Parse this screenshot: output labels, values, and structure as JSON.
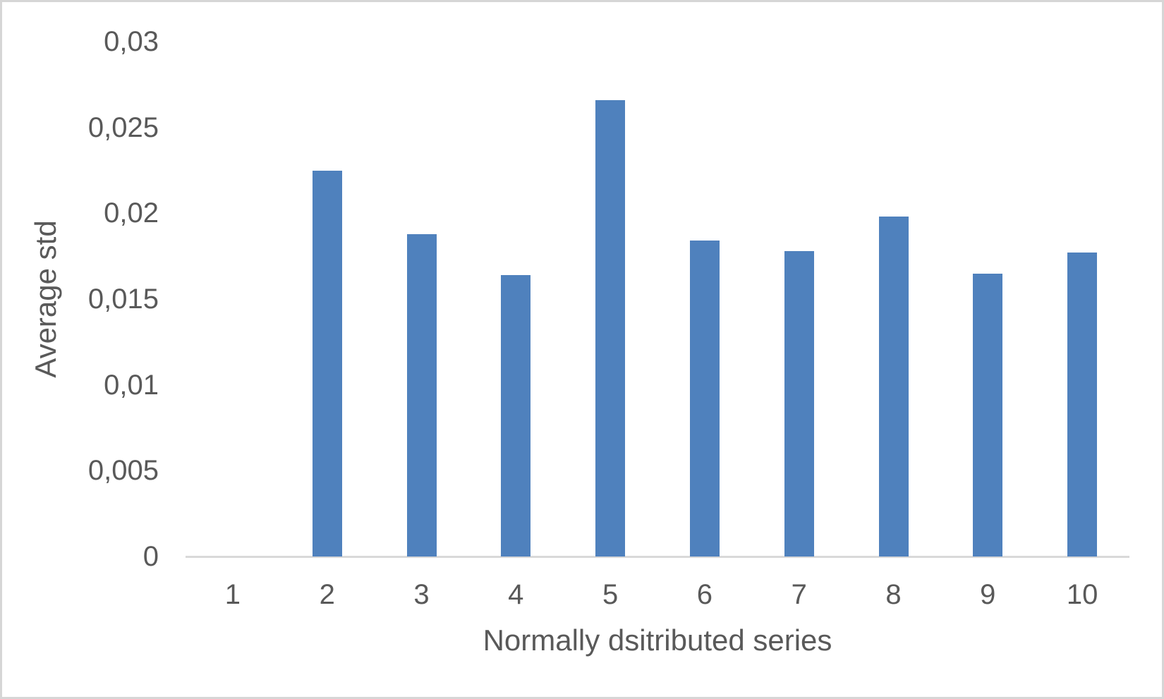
{
  "chart_data": {
    "type": "bar",
    "title": "",
    "xlabel": "Normally dsitributed series",
    "ylabel": "Average std",
    "categories": [
      "1",
      "2",
      "3",
      "4",
      "5",
      "6",
      "7",
      "8",
      "9",
      "10"
    ],
    "values": [
      0,
      0.0225,
      0.0188,
      0.0164,
      0.0266,
      0.0184,
      0.0178,
      0.0198,
      0.0165,
      0.0177
    ],
    "ylim": [
      0,
      0.03
    ],
    "y_ticks": [
      0,
      0.005,
      0.01,
      0.015,
      0.02,
      0.025,
      0.03
    ],
    "y_tick_labels": [
      "0",
      "0,005",
      "0,01",
      "0,015",
      "0,02",
      "0,025",
      "0,03"
    ],
    "decimal_separator": ",",
    "grid": false,
    "legend": null,
    "bar_color": "#4F81BD",
    "axis_line_color": "#D9D9D9",
    "text_color": "#595959",
    "frame_border_color": "#D6D6D6"
  },
  "layout_note": ""
}
